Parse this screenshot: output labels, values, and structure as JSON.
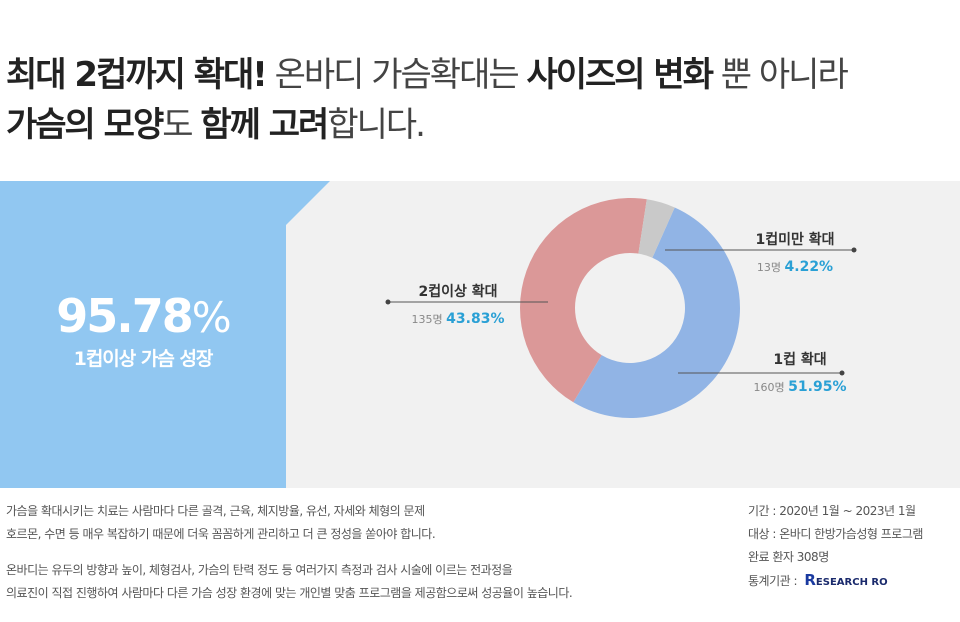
{
  "headline": {
    "line1": [
      {
        "t": "최대 2컵까지 확대!",
        "bold": true
      },
      {
        "t": " 온바디 가슴확대는 ",
        "bold": false
      },
      {
        "t": "사이즈의 변화",
        "bold": true
      },
      {
        "t": " 뿐 아니라",
        "bold": false
      }
    ],
    "line2": [
      {
        "t": "가슴의 모양",
        "bold": true
      },
      {
        "t": "도 ",
        "bold": false
      },
      {
        "t": "함께 고려",
        "bold": true
      },
      {
        "t": "합니다.",
        "bold": false
      }
    ]
  },
  "stat": {
    "value": "95.78",
    "unit": "%",
    "label": "1컵이상 가슴 성장"
  },
  "colors": {
    "stat_bg": "#91c7f1",
    "panel_bg": "#f1f1f1",
    "accent_text": "#2aa0d5",
    "leader": "#555555"
  },
  "chart_data": {
    "type": "pie",
    "style": "donut",
    "categories": [
      "1컵 확대",
      "2컵이상 확대",
      "1컵미만 확대"
    ],
    "counts": [
      "160명",
      "135명",
      "13명"
    ],
    "values": [
      51.95,
      43.83,
      4.22
    ],
    "value_labels": [
      "51.95%",
      "43.83%",
      "4.22%"
    ],
    "colors": [
      "#91b4e5",
      "#db9898",
      "#c9c9c9"
    ]
  },
  "notes": {
    "p1": [
      "가슴을 확대시키는 치료는 사람마다 다른 골격, 근육, 체지방율, 유선, 자세와 체형의 문제",
      "호르몬, 수면 등 매우 복잡하기 때문에 더욱 꼼꼼하게 관리하고 더 큰 정성을 쏟아야 합니다."
    ],
    "p2": [
      "온바디는 유두의 방향과 높이, 체형검사, 가슴의 탄력 정도 등 여러가지 측정과 검사 시술에 이르는  전과정을",
      "의료진이 직접 진행하여 사람마다 다른 가슴 성장 환경에 맞는 개인별 맞춤 프로그램을 제공함으로써 성공율이 높습니다."
    ]
  },
  "meta": {
    "period": "기간 : 2020년 1월 ~ 2023년 1월",
    "subject": "대상 : 온바디 한방가슴성형 프로그램",
    "patients": "완료 환자 308명",
    "source_label": "통계기관 :",
    "logo_r": "R",
    "logo_text": "ESEARCH RO"
  }
}
